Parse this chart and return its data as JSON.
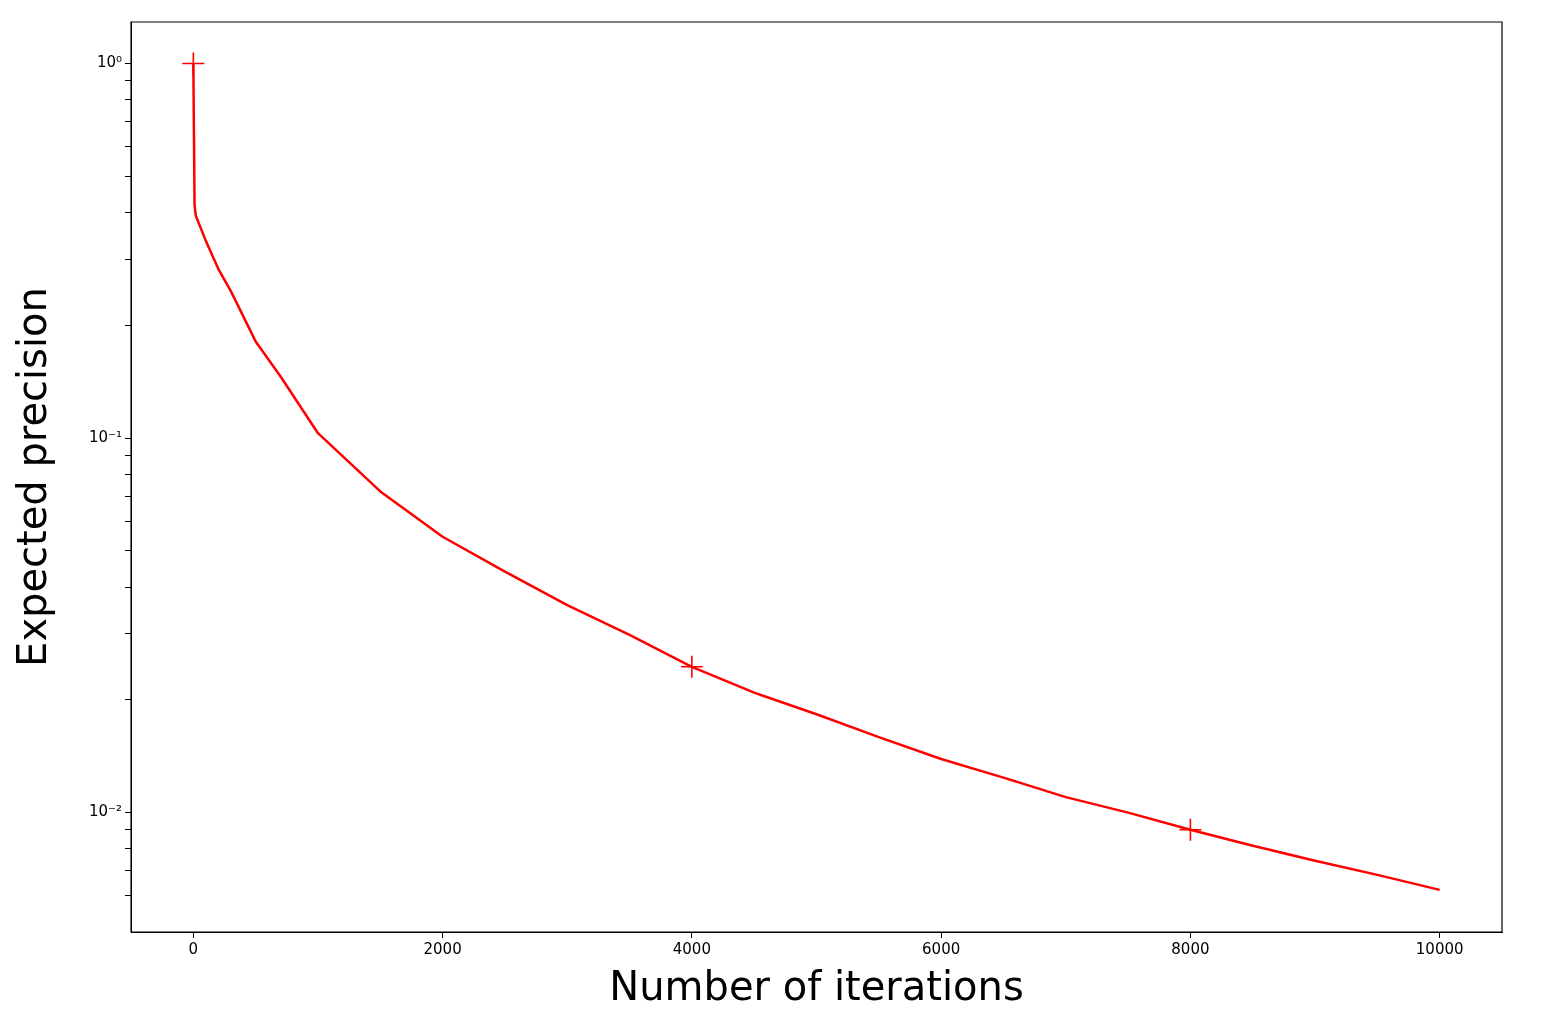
{
  "chart_data": {
    "type": "line",
    "xlabel": "Number of iterations",
    "ylabel": "Expected precision",
    "log": "y",
    "legend": false,
    "xlim": [
      -500,
      10500
    ],
    "xticks": [
      0,
      2000,
      4000,
      6000,
      8000,
      10000
    ],
    "ylim": [
      0.0048,
      1.29
    ],
    "yticks": [
      {
        "value": 0.006,
        "label": null
      },
      {
        "value": 0.007,
        "label": null
      },
      {
        "value": 0.008,
        "label": null
      },
      {
        "value": 0.009,
        "label": null
      },
      {
        "value": 0.01,
        "label": "10⁻²"
      },
      {
        "value": 0.02,
        "label": null
      },
      {
        "value": 0.03,
        "label": null
      },
      {
        "value": 0.04,
        "label": null
      },
      {
        "value": 0.05,
        "label": null
      },
      {
        "value": 0.06,
        "label": null
      },
      {
        "value": 0.07,
        "label": null
      },
      {
        "value": 0.08,
        "label": null
      },
      {
        "value": 0.09,
        "label": null
      },
      {
        "value": 0.1,
        "label": "10⁻¹"
      },
      {
        "value": 0.2,
        "label": null
      },
      {
        "value": 0.3,
        "label": null
      },
      {
        "value": 0.4,
        "label": null
      },
      {
        "value": 0.5,
        "label": null
      },
      {
        "value": 0.6,
        "label": null
      },
      {
        "value": 0.7,
        "label": null
      },
      {
        "value": 0.8,
        "label": null
      },
      {
        "value": 0.9,
        "label": null
      },
      {
        "value": 1,
        "label": "10⁰"
      }
    ],
    "series": [
      {
        "color": "#ff0000",
        "marker": "none",
        "line_style": "solid",
        "x": [
          0,
          10,
          20,
          100,
          200,
          300,
          500,
          700,
          1000,
          1500,
          2000,
          2500,
          3000,
          3500,
          4000,
          4500,
          5000,
          5500,
          6000,
          6500,
          7000,
          7500,
          8000,
          8500,
          9000,
          9500,
          10000
        ],
        "values": [
          1,
          0.417,
          0.392,
          0.336,
          0.283,
          0.247,
          0.181,
          0.146,
          0.103,
          0.072,
          0.0545,
          0.044,
          0.0358,
          0.0298,
          0.0245,
          0.0209,
          0.0183,
          0.0159,
          0.0139,
          0.0124,
          0.011,
          0.01,
          0.009,
          0.00816,
          0.00744,
          0.00682,
          0.00622
        ]
      },
      {
        "type": "scatter",
        "color": "#ff0000",
        "marker": "cross",
        "x": [
          0,
          4000,
          8000
        ],
        "values": [
          1,
          0.0245,
          0.009
        ]
      }
    ]
  }
}
